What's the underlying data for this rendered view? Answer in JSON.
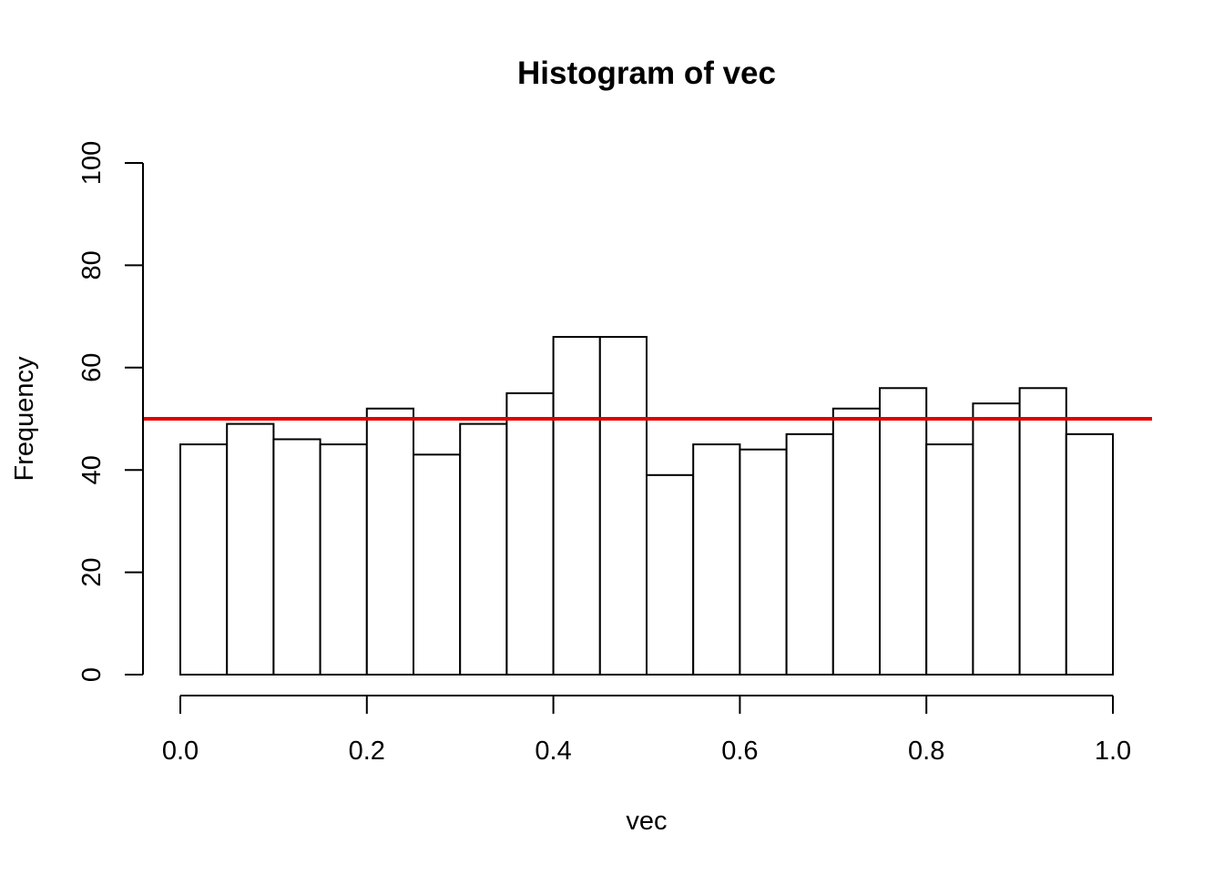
{
  "chart_data": {
    "type": "bar",
    "title": "Histogram of vec",
    "xlabel": "vec",
    "ylabel": "Frequency",
    "bin_edges": [
      0.0,
      0.05,
      0.1,
      0.15,
      0.2,
      0.25,
      0.3,
      0.35,
      0.4,
      0.45,
      0.5,
      0.55,
      0.6,
      0.65,
      0.7,
      0.75,
      0.8,
      0.85,
      0.9,
      0.95,
      1.0
    ],
    "values": [
      45,
      49,
      46,
      45,
      52,
      43,
      49,
      55,
      66,
      66,
      39,
      45,
      44,
      47,
      52,
      56,
      45,
      53,
      56,
      47
    ],
    "xlim": [
      0.0,
      1.0
    ],
    "ylim": [
      0,
      100
    ],
    "x_ticks": [
      "0.0",
      "0.2",
      "0.4",
      "0.6",
      "0.8",
      "1.0"
    ],
    "y_ticks": [
      "0",
      "20",
      "40",
      "60",
      "80",
      "100"
    ],
    "reference_line": {
      "y": 50,
      "color": "#e00000"
    },
    "bar_fill": "#ffffff",
    "bar_stroke": "#000000",
    "grid": false
  }
}
